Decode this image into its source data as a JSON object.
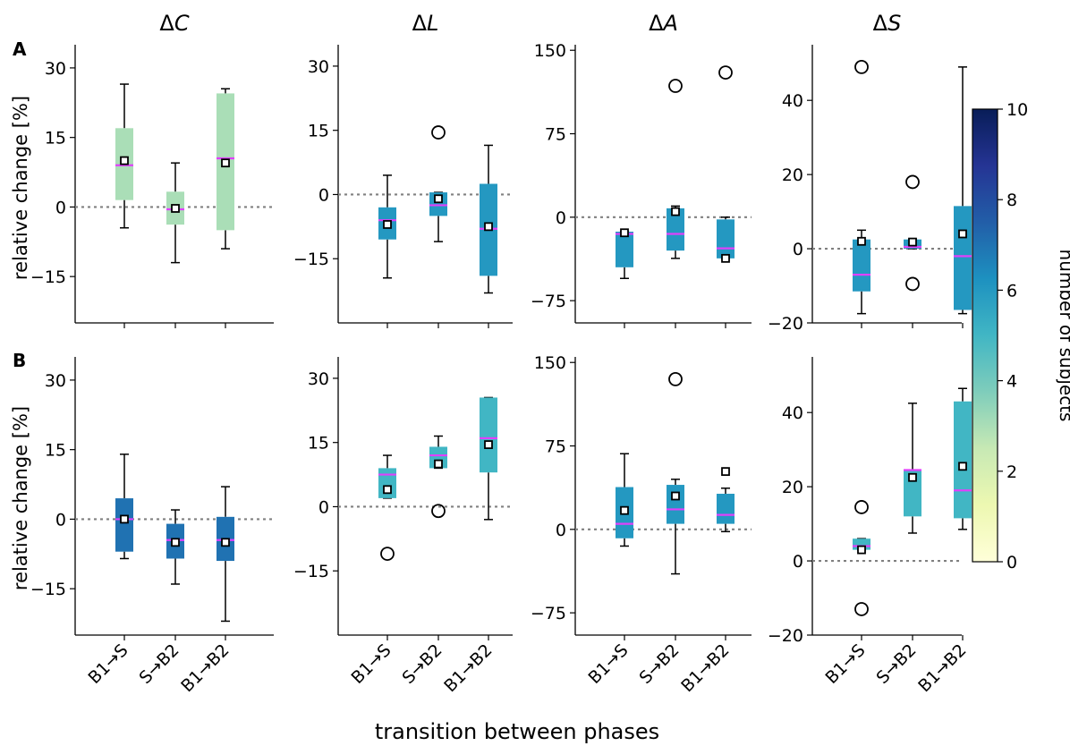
{
  "figure": {
    "xlabel": "transition between phases",
    "ylabel": "relative change [%]",
    "row_labels": [
      "A",
      "B"
    ],
    "col_titles": [
      "ΔC",
      "ΔL",
      "ΔA",
      "ΔS"
    ],
    "colorbar": {
      "label": "number of subjects",
      "range": [
        0,
        10
      ],
      "ticks": [
        "0",
        "2",
        "4",
        "6",
        "8",
        "10"
      ],
      "colormap": [
        "#ffffd9",
        "#edf8b1",
        "#c7e9b4",
        "#7fcdbb",
        "#41b6c4",
        "#1d91c0",
        "#225ea8",
        "#253494",
        "#081d58"
      ]
    }
  },
  "chart_data": [
    {
      "type": "box",
      "row": "A",
      "title": "ΔC",
      "categories": [
        "B1→S",
        "S→B2",
        "B1→B2"
      ],
      "ylim": [
        -25,
        35
      ],
      "yticks": [
        -15,
        0,
        15,
        30
      ],
      "reference_line": 0,
      "boxes": [
        {
          "category": "B1→S",
          "n_subjects": 3,
          "whisker_low": -4.5,
          "q1": 1.5,
          "median": 9,
          "q3": 17,
          "whisker_high": 26.5,
          "mean": 10,
          "outliers": []
        },
        {
          "category": "S→B2",
          "n_subjects": 3,
          "whisker_low": -12,
          "q1": -3.8,
          "median": -0.5,
          "q3": 3.3,
          "whisker_high": 9.5,
          "mean": -0.3,
          "outliers": []
        },
        {
          "category": "B1→B2",
          "n_subjects": 3,
          "whisker_low": -9,
          "q1": -5,
          "median": 10.5,
          "q3": 24.5,
          "whisker_high": 25.5,
          "mean": 9.5,
          "outliers": []
        }
      ]
    },
    {
      "type": "box",
      "row": "A",
      "title": "ΔL",
      "categories": [
        "B1→S",
        "S→B2",
        "B1→B2"
      ],
      "ylim": [
        -30,
        35
      ],
      "yticks": [
        -15,
        0,
        15,
        30
      ],
      "reference_line": 0,
      "boxes": [
        {
          "category": "B1→S",
          "n_subjects": 6,
          "whisker_low": -19.5,
          "q1": -10.5,
          "median": -6,
          "q3": -3,
          "whisker_high": 4.5,
          "mean": -7,
          "outliers": []
        },
        {
          "category": "S→B2",
          "n_subjects": 6,
          "whisker_low": -11,
          "q1": -5,
          "median": -2.5,
          "q3": 0.5,
          "whisker_high": 0.5,
          "mean": -1,
          "outliers": [
            14.5
          ]
        },
        {
          "category": "B1→B2",
          "n_subjects": 6,
          "whisker_low": -23,
          "q1": -19,
          "median": -8,
          "q3": 2.5,
          "whisker_high": 11.5,
          "mean": -7.5,
          "outliers": []
        }
      ]
    },
    {
      "type": "box",
      "row": "A",
      "title": "ΔA",
      "categories": [
        "B1→S",
        "S→B2",
        "B1→B2"
      ],
      "ylim": [
        -95,
        155
      ],
      "yticks": [
        -75,
        0,
        75,
        150
      ],
      "reference_line": 0,
      "boxes": [
        {
          "category": "B1→S",
          "n_subjects": 6,
          "whisker_low": -55,
          "q1": -45,
          "median": -15,
          "q3": -13,
          "whisker_high": -13,
          "mean": -14,
          "outliers": []
        },
        {
          "category": "S→B2",
          "n_subjects": 6,
          "whisker_low": -37,
          "q1": -30,
          "median": -15,
          "q3": 8,
          "whisker_high": 10,
          "mean": 5,
          "outliers": [
            118
          ]
        },
        {
          "category": "B1→B2",
          "n_subjects": 6,
          "whisker_low": -37,
          "q1": -37,
          "median": -28,
          "q3": -2,
          "whisker_high": 0,
          "mean": -37,
          "outliers": [
            130
          ]
        }
      ]
    },
    {
      "type": "box",
      "row": "A",
      "title": "ΔS",
      "categories": [
        "B1→S",
        "S→B2",
        "B1→B2"
      ],
      "ylim": [
        -20,
        55
      ],
      "yticks": [
        -20,
        0,
        20,
        40
      ],
      "reference_line": 0,
      "boxes": [
        {
          "category": "B1→S",
          "n_subjects": 6,
          "whisker_low": -17.5,
          "q1": -11.5,
          "median": -7,
          "q3": 2.5,
          "whisker_high": 5,
          "mean": 2,
          "outliers": [
            49
          ]
        },
        {
          "category": "S→B2",
          "n_subjects": 6,
          "whisker_low": 0,
          "q1": 0,
          "median": 0.5,
          "q3": 2.5,
          "whisker_high": 2.5,
          "mean": 1.8,
          "outliers": [
            18,
            -9.5
          ]
        },
        {
          "category": "B1→B2",
          "n_subjects": 6,
          "whisker_low": -17.5,
          "q1": -16.5,
          "median": -2,
          "q3": 11.5,
          "whisker_high": 49,
          "mean": 4,
          "outliers": []
        }
      ]
    },
    {
      "type": "box",
      "row": "B",
      "title": "",
      "categories": [
        "B1→S",
        "S→B2",
        "B1→B2"
      ],
      "ylim": [
        -25,
        35
      ],
      "yticks": [
        -15,
        0,
        15,
        30
      ],
      "reference_line": 0,
      "boxes": [
        {
          "category": "B1→S",
          "n_subjects": 7,
          "whisker_low": -8.5,
          "q1": -7,
          "median": 0,
          "q3": 4.5,
          "whisker_high": 14,
          "mean": 0,
          "outliers": []
        },
        {
          "category": "S→B2",
          "n_subjects": 7,
          "whisker_low": -14,
          "q1": -8.5,
          "median": -4.5,
          "q3": -1,
          "whisker_high": 2,
          "mean": -5,
          "outliers": []
        },
        {
          "category": "B1→B2",
          "n_subjects": 7,
          "whisker_low": -22,
          "q1": -9,
          "median": -4.5,
          "q3": 0.5,
          "whisker_high": 7,
          "mean": -5,
          "outliers": []
        }
      ]
    },
    {
      "type": "box",
      "row": "B",
      "title": "",
      "categories": [
        "B1→S",
        "S→B2",
        "B1→B2"
      ],
      "ylim": [
        -30,
        35
      ],
      "yticks": [
        -15,
        0,
        15,
        30
      ],
      "reference_line": 0,
      "boxes": [
        {
          "category": "B1→S",
          "n_subjects": 5,
          "whisker_low": 2,
          "q1": 2,
          "median": 7.5,
          "q3": 9,
          "whisker_high": 12,
          "mean": 4,
          "outliers": [
            -11
          ]
        },
        {
          "category": "S→B2",
          "n_subjects": 5,
          "whisker_low": 9,
          "q1": 9,
          "median": 12,
          "q3": 14,
          "whisker_high": 16.5,
          "mean": 10,
          "outliers": [
            -1
          ]
        },
        {
          "category": "B1→B2",
          "n_subjects": 5,
          "whisker_low": -3,
          "q1": 8,
          "median": 16,
          "q3": 25.5,
          "whisker_high": 25.5,
          "mean": 14.5,
          "outliers": []
        }
      ]
    },
    {
      "type": "box",
      "row": "B",
      "title": "",
      "categories": [
        "B1→S",
        "S→B2",
        "B1→B2"
      ],
      "ylim": [
        -95,
        155
      ],
      "yticks": [
        -75,
        0,
        75,
        150
      ],
      "reference_line": 0,
      "boxes": [
        {
          "category": "B1→S",
          "n_subjects": 6,
          "whisker_low": -15,
          "q1": -8,
          "median": 5,
          "q3": 38,
          "whisker_high": 68,
          "mean": 17,
          "outliers": []
        },
        {
          "category": "S→B2",
          "n_subjects": 6,
          "whisker_low": -40,
          "q1": 5,
          "median": 18,
          "q3": 40,
          "whisker_high": 45,
          "mean": 30,
          "outliers": [
            135
          ]
        },
        {
          "category": "B1→B2",
          "n_subjects": 6,
          "whisker_low": -2,
          "q1": 5,
          "median": 13,
          "q3": 32,
          "whisker_high": 37,
          "mean": 52,
          "outliers": []
        }
      ]
    },
    {
      "type": "box",
      "row": "B",
      "title": "",
      "categories": [
        "B1→S",
        "S→B2",
        "B1→B2"
      ],
      "ylim": [
        -20,
        55
      ],
      "yticks": [
        -20,
        0,
        20,
        40
      ],
      "reference_line": 0,
      "boxes": [
        {
          "category": "B1→S",
          "n_subjects": 5,
          "whisker_low": 3,
          "q1": 3,
          "median": 4,
          "q3": 6,
          "whisker_high": 6,
          "mean": 3,
          "outliers": [
            14.5,
            -13
          ]
        },
        {
          "category": "S→B2",
          "n_subjects": 5,
          "whisker_low": 7.5,
          "q1": 12,
          "median": 24.5,
          "q3": 24.5,
          "whisker_high": 42.5,
          "mean": 22.5,
          "outliers": []
        },
        {
          "category": "B1→B2",
          "n_subjects": 5,
          "whisker_low": 8.5,
          "q1": 11.5,
          "median": 19,
          "q3": 43,
          "whisker_high": 46.5,
          "mean": 25.5,
          "outliers": []
        }
      ]
    }
  ]
}
